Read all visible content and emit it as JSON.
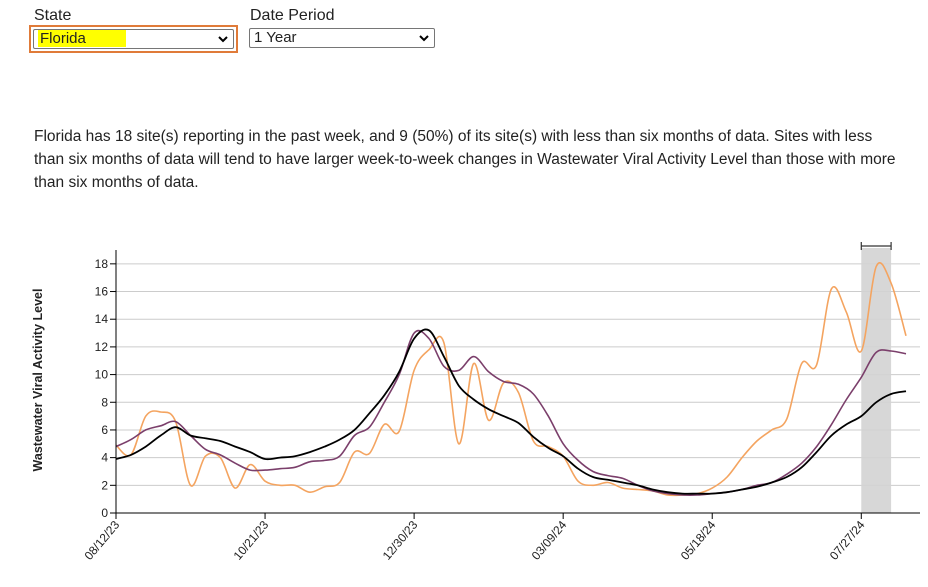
{
  "controls": {
    "state": {
      "label": "State",
      "value": "Florida"
    },
    "date_period": {
      "label": "Date Period",
      "value": "1 Year"
    }
  },
  "description": "Florida has 18 site(s) reporting in the past week, and 9 (50%) of its site(s) with less than six months of data. Sites with less than six months of data will tend to have larger week-to-week changes in Wastewater Viral Activity Level than those with more than six months of data.",
  "colors": {
    "black_series": "#000000",
    "purple_series": "#7b3f6b",
    "orange_series": "#f4a460",
    "shade": "#d3d3d3",
    "gridline": "#cccccc"
  },
  "chart_data": {
    "type": "line",
    "title": "",
    "xlabel": "",
    "ylabel": "Wastewater Viral Activity Level",
    "ylim": [
      0,
      19
    ],
    "yticks": [
      0,
      2,
      4,
      6,
      8,
      10,
      12,
      14,
      16,
      18
    ],
    "x_start": "2023-08-12",
    "x_end": "2024-08-17",
    "xtick_labels": [
      "08/12/23",
      "10/21/23",
      "12/30/23",
      "03/09/24",
      "05/18/24",
      "07/27/24"
    ],
    "xtick_dates": [
      "2023-08-12",
      "2023-10-21",
      "2023-12-30",
      "2024-03-09",
      "2024-05-18",
      "2024-07-27"
    ],
    "shaded_range": [
      "2024-07-27",
      "2024-08-10"
    ],
    "grid": "horizontal",
    "series": [
      {
        "color": "#000000",
        "points": [
          [
            "2023-08-12",
            3.9
          ],
          [
            "2023-08-19",
            4.2
          ],
          [
            "2023-08-26",
            4.8
          ],
          [
            "2023-09-02",
            5.6
          ],
          [
            "2023-09-09",
            6.2
          ],
          [
            "2023-09-16",
            5.6
          ],
          [
            "2023-09-23",
            5.4
          ],
          [
            "2023-09-30",
            5.2
          ],
          [
            "2023-10-07",
            4.8
          ],
          [
            "2023-10-14",
            4.4
          ],
          [
            "2023-10-21",
            3.9
          ],
          [
            "2023-10-28",
            4.0
          ],
          [
            "2023-11-04",
            4.1
          ],
          [
            "2023-11-11",
            4.4
          ],
          [
            "2023-11-18",
            4.8
          ],
          [
            "2023-11-25",
            5.3
          ],
          [
            "2023-12-02",
            6.0
          ],
          [
            "2023-12-09",
            7.2
          ],
          [
            "2023-12-16",
            8.5
          ],
          [
            "2023-12-23",
            10.2
          ],
          [
            "2023-12-30",
            12.6
          ],
          [
            "2024-01-06",
            13.2
          ],
          [
            "2024-01-13",
            11.3
          ],
          [
            "2024-01-20",
            9.2
          ],
          [
            "2024-01-27",
            8.2
          ],
          [
            "2024-02-03",
            7.5
          ],
          [
            "2024-02-10",
            7.0
          ],
          [
            "2024-02-17",
            6.5
          ],
          [
            "2024-02-24",
            5.5
          ],
          [
            "2024-03-02",
            4.7
          ],
          [
            "2024-03-09",
            4.1
          ],
          [
            "2024-03-16",
            3.2
          ],
          [
            "2024-03-23",
            2.6
          ],
          [
            "2024-03-30",
            2.4
          ],
          [
            "2024-04-06",
            2.2
          ],
          [
            "2024-04-13",
            2.0
          ],
          [
            "2024-04-20",
            1.7
          ],
          [
            "2024-04-27",
            1.5
          ],
          [
            "2024-05-04",
            1.4
          ],
          [
            "2024-05-11",
            1.4
          ],
          [
            "2024-05-18",
            1.4
          ],
          [
            "2024-05-25",
            1.5
          ],
          [
            "2024-06-01",
            1.7
          ],
          [
            "2024-06-08",
            1.9
          ],
          [
            "2024-06-15",
            2.2
          ],
          [
            "2024-06-22",
            2.6
          ],
          [
            "2024-06-29",
            3.3
          ],
          [
            "2024-07-06",
            4.4
          ],
          [
            "2024-07-13",
            5.6
          ],
          [
            "2024-07-20",
            6.4
          ],
          [
            "2024-07-27",
            7.0
          ],
          [
            "2024-08-03",
            8.0
          ],
          [
            "2024-08-10",
            8.6
          ],
          [
            "2024-08-17",
            8.8
          ]
        ]
      },
      {
        "color": "#7b3f6b",
        "points": [
          [
            "2023-08-12",
            4.8
          ],
          [
            "2023-08-19",
            5.3
          ],
          [
            "2023-08-26",
            6.0
          ],
          [
            "2023-09-02",
            6.3
          ],
          [
            "2023-09-09",
            6.6
          ],
          [
            "2023-09-16",
            5.6
          ],
          [
            "2023-09-23",
            4.6
          ],
          [
            "2023-09-30",
            4.2
          ],
          [
            "2023-10-07",
            3.6
          ],
          [
            "2023-10-14",
            3.1
          ],
          [
            "2023-10-21",
            3.1
          ],
          [
            "2023-10-28",
            3.2
          ],
          [
            "2023-11-04",
            3.3
          ],
          [
            "2023-11-11",
            3.7
          ],
          [
            "2023-11-18",
            3.8
          ],
          [
            "2023-11-25",
            4.1
          ],
          [
            "2023-12-02",
            5.6
          ],
          [
            "2023-12-09",
            6.2
          ],
          [
            "2023-12-16",
            8.0
          ],
          [
            "2023-12-23",
            10.0
          ],
          [
            "2023-12-30",
            13.0
          ],
          [
            "2024-01-06",
            12.6
          ],
          [
            "2024-01-13",
            10.6
          ],
          [
            "2024-01-20",
            10.3
          ],
          [
            "2024-01-27",
            11.3
          ],
          [
            "2024-02-03",
            10.2
          ],
          [
            "2024-02-10",
            9.5
          ],
          [
            "2024-02-17",
            9.3
          ],
          [
            "2024-02-24",
            8.6
          ],
          [
            "2024-03-02",
            7.0
          ],
          [
            "2024-03-09",
            5.0
          ],
          [
            "2024-03-16",
            3.8
          ],
          [
            "2024-03-23",
            3.0
          ],
          [
            "2024-03-30",
            2.7
          ],
          [
            "2024-04-06",
            2.5
          ],
          [
            "2024-04-13",
            2.0
          ],
          [
            "2024-04-20",
            1.6
          ],
          [
            "2024-04-27",
            1.4
          ],
          [
            "2024-05-04",
            1.3
          ],
          [
            "2024-05-11",
            1.3
          ],
          [
            "2024-05-18",
            1.4
          ],
          [
            "2024-05-25",
            1.5
          ],
          [
            "2024-06-01",
            1.7
          ],
          [
            "2024-06-08",
            2.0
          ],
          [
            "2024-06-15",
            2.2
          ],
          [
            "2024-06-22",
            2.8
          ],
          [
            "2024-06-29",
            3.6
          ],
          [
            "2024-07-06",
            4.8
          ],
          [
            "2024-07-13",
            6.4
          ],
          [
            "2024-07-20",
            8.2
          ],
          [
            "2024-07-27",
            9.8
          ],
          [
            "2024-08-03",
            11.6
          ],
          [
            "2024-08-10",
            11.7
          ],
          [
            "2024-08-17",
            11.5
          ]
        ]
      },
      {
        "color": "#f4a460",
        "points": [
          [
            "2023-08-12",
            4.9
          ],
          [
            "2023-08-19",
            4.2
          ],
          [
            "2023-08-26",
            7.0
          ],
          [
            "2023-09-02",
            7.3
          ],
          [
            "2023-09-09",
            6.6
          ],
          [
            "2023-09-16",
            2.0
          ],
          [
            "2023-09-23",
            4.1
          ],
          [
            "2023-09-30",
            4.0
          ],
          [
            "2023-10-07",
            1.8
          ],
          [
            "2023-10-14",
            3.5
          ],
          [
            "2023-10-21",
            2.3
          ],
          [
            "2023-10-28",
            2.0
          ],
          [
            "2023-11-04",
            2.0
          ],
          [
            "2023-11-11",
            1.5
          ],
          [
            "2023-11-18",
            1.9
          ],
          [
            "2023-11-25",
            2.2
          ],
          [
            "2023-12-02",
            4.4
          ],
          [
            "2023-12-09",
            4.3
          ],
          [
            "2023-12-16",
            6.4
          ],
          [
            "2023-12-23",
            5.9
          ],
          [
            "2023-12-30",
            10.3
          ],
          [
            "2024-01-06",
            11.8
          ],
          [
            "2024-01-13",
            12.3
          ],
          [
            "2024-01-20",
            5.0
          ],
          [
            "2024-01-27",
            10.8
          ],
          [
            "2024-02-03",
            6.7
          ],
          [
            "2024-02-10",
            9.4
          ],
          [
            "2024-02-17",
            8.7
          ],
          [
            "2024-02-24",
            5.2
          ],
          [
            "2024-03-02",
            4.8
          ],
          [
            "2024-03-09",
            4.1
          ],
          [
            "2024-03-16",
            2.3
          ],
          [
            "2024-03-23",
            2.0
          ],
          [
            "2024-03-30",
            2.2
          ],
          [
            "2024-04-06",
            1.8
          ],
          [
            "2024-04-13",
            1.7
          ],
          [
            "2024-04-20",
            1.6
          ],
          [
            "2024-04-27",
            1.3
          ],
          [
            "2024-05-04",
            1.3
          ],
          [
            "2024-05-11",
            1.4
          ],
          [
            "2024-05-18",
            1.8
          ],
          [
            "2024-05-25",
            2.6
          ],
          [
            "2024-06-01",
            4.0
          ],
          [
            "2024-06-08",
            5.2
          ],
          [
            "2024-06-15",
            6.0
          ],
          [
            "2024-06-22",
            6.8
          ],
          [
            "2024-06-29",
            10.8
          ],
          [
            "2024-07-06",
            10.7
          ],
          [
            "2024-07-13",
            16.2
          ],
          [
            "2024-07-20",
            14.5
          ],
          [
            "2024-07-27",
            11.7
          ],
          [
            "2024-08-03",
            17.8
          ],
          [
            "2024-08-10",
            16.6
          ],
          [
            "2024-08-17",
            12.8
          ]
        ]
      }
    ]
  }
}
